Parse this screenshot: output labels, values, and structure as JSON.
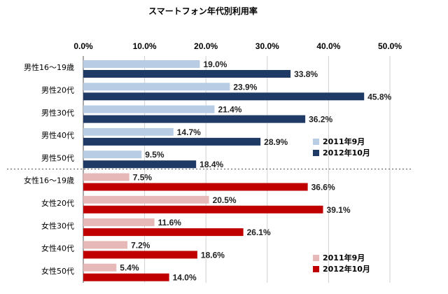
{
  "chart_data": {
    "type": "bar",
    "orientation": "horizontal",
    "title": "スマートフォン年代別利用率",
    "xlim": [
      0,
      50
    ],
    "ticks": [
      "0.0%",
      "10.0%",
      "20.0%",
      "30.0%",
      "40.0%",
      "50.0%"
    ],
    "grid": true,
    "groups": [
      {
        "name": "male",
        "categories": [
          "男性16～19歳",
          "男性20代",
          "男性30代",
          "男性40代",
          "男性50代"
        ],
        "series": [
          {
            "name": "2011年9月",
            "color": "#b8cce4",
            "values": [
              19.0,
              23.9,
              21.4,
              14.7,
              9.5
            ],
            "labels": [
              "19.0%",
              "23.9%",
              "21.4%",
              "14.7%",
              "9.5%"
            ]
          },
          {
            "name": "2012年10月",
            "color": "#1f3a64",
            "values": [
              33.8,
              45.8,
              36.2,
              28.9,
              18.4
            ],
            "labels": [
              "33.8%",
              "45.8%",
              "36.2%",
              "28.9%",
              "18.4%"
            ]
          }
        ],
        "legend_position": "right"
      },
      {
        "name": "female",
        "categories": [
          "女性16～19歳",
          "女性20代",
          "女性30代",
          "女性40代",
          "女性50代"
        ],
        "series": [
          {
            "name": "2011年9月",
            "color": "#e6b8b8",
            "values": [
              7.5,
              20.5,
              11.6,
              7.2,
              5.4
            ],
            "labels": [
              "7.5%",
              "20.5%",
              "11.6%",
              "7.2%",
              "5.4%"
            ]
          },
          {
            "name": "2012年10月",
            "color": "#c00000",
            "values": [
              36.6,
              39.1,
              26.1,
              18.6,
              14.0
            ],
            "labels": [
              "36.6%",
              "39.1%",
              "26.1%",
              "18.6%",
              "14.0%"
            ]
          }
        ],
        "legend_position": "bottom-right"
      }
    ]
  }
}
